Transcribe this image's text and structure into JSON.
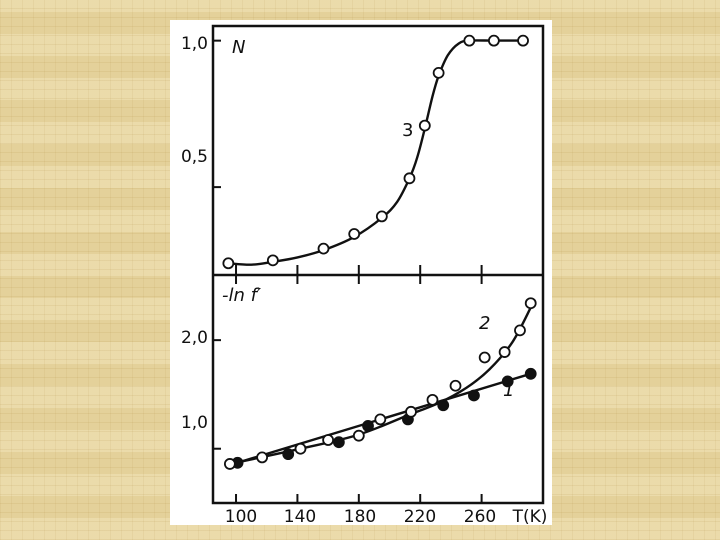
{
  "chart_data": [
    {
      "type": "line",
      "ylabel": "N",
      "x_range": [
        85,
        300
      ],
      "ylim": [
        0.2,
        1.05
      ],
      "yticks": [
        {
          "value": 1.0,
          "label": "1,0"
        },
        {
          "value": 0.5,
          "label": "0,5"
        }
      ],
      "series": [
        {
          "name": "3",
          "marker": "open-circle",
          "points": [
            [
              95,
              0.24
            ],
            [
              124,
              0.25
            ],
            [
              157,
              0.29
            ],
            [
              177,
              0.34
            ],
            [
              195,
              0.4
            ],
            [
              213,
              0.53
            ],
            [
              223,
              0.71
            ],
            [
              232,
              0.89
            ],
            [
              252,
              1.0
            ],
            [
              268,
              1.0
            ],
            [
              287,
              1.0
            ]
          ],
          "curve": [
            [
              95,
              0.24
            ],
            [
              110,
              0.235
            ],
            [
              124,
              0.245
            ],
            [
              140,
              0.26
            ],
            [
              157,
              0.285
            ],
            [
              177,
              0.33
            ],
            [
              195,
              0.395
            ],
            [
              205,
              0.45
            ],
            [
              213,
              0.53
            ],
            [
              218,
              0.6
            ],
            [
              223,
              0.7
            ],
            [
              228,
              0.81
            ],
            [
              232,
              0.88
            ],
            [
              238,
              0.95
            ],
            [
              245,
              0.99
            ],
            [
              252,
              1.0
            ],
            [
              268,
              1.0
            ],
            [
              287,
              1.0
            ]
          ]
        }
      ]
    },
    {
      "type": "line",
      "ylabel": "-ln f′",
      "xticks": [
        {
          "value": 100,
          "label": "100"
        },
        {
          "value": 140,
          "label": "140"
        },
        {
          "value": 180,
          "label": "180"
        },
        {
          "value": 220,
          "label": "220"
        },
        {
          "value": 260,
          "label": "260"
        }
      ],
      "xunit": "T(K)",
      "x_range": [
        85,
        300
      ],
      "ylim": [
        0.5,
        2.6
      ],
      "yticks": [
        {
          "value": 2.0,
          "label": "2,0"
        },
        {
          "value": 1.0,
          "label": "1,0"
        }
      ],
      "series": [
        {
          "name": "1",
          "marker": "filled-circle",
          "points": [
            [
              101,
              0.87
            ],
            [
              134,
              0.95
            ],
            [
              167,
              1.06
            ],
            [
              186,
              1.21
            ],
            [
              212,
              1.27
            ],
            [
              235,
              1.4
            ],
            [
              255,
              1.49
            ],
            [
              277,
              1.62
            ],
            [
              292,
              1.69
            ]
          ],
          "curve": [
            [
              96,
              0.85
            ],
            [
              292,
              1.69
            ]
          ]
        },
        {
          "name": "2",
          "marker": "open-circle",
          "points": [
            [
              96,
              0.86
            ],
            [
              117,
              0.92
            ],
            [
              142,
              1.0
            ],
            [
              160,
              1.08
            ],
            [
              180,
              1.12
            ],
            [
              194,
              1.27
            ],
            [
              214,
              1.34
            ],
            [
              228,
              1.45
            ],
            [
              243,
              1.58
            ],
            [
              262,
              1.84
            ],
            [
              275,
              1.89
            ],
            [
              285,
              2.09
            ],
            [
              292,
              2.34
            ]
          ],
          "curve": [
            [
              96,
              0.86
            ],
            [
              142,
              1.0
            ],
            [
              180,
              1.13
            ],
            [
              214,
              1.32
            ],
            [
              232,
              1.42
            ],
            [
              250,
              1.56
            ],
            [
              265,
              1.73
            ],
            [
              280,
              1.98
            ],
            [
              292,
              2.3
            ]
          ]
        }
      ]
    }
  ]
}
